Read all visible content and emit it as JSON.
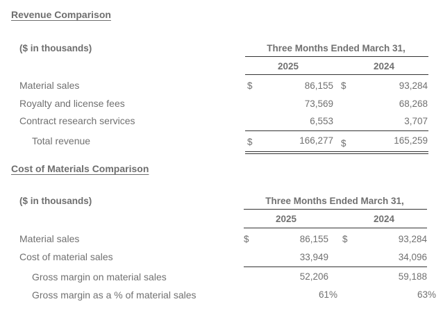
{
  "revenue": {
    "title": "Revenue Comparison",
    "units": "($ in thousands)",
    "period": "Three Months Ended March 31,",
    "years": [
      "2025",
      "2024"
    ],
    "rows": [
      {
        "label": "Material sales",
        "cur1": "$",
        "v1": "86,155",
        "cur2": "$",
        "v2": "93,284"
      },
      {
        "label": "Royalty and license fees",
        "cur1": "",
        "v1": "73,569",
        "cur2": "",
        "v2": "68,268"
      },
      {
        "label": "Contract research services",
        "cur1": "",
        "v1": "6,553",
        "cur2": "",
        "v2": "3,707"
      }
    ],
    "total": {
      "label": "Total revenue",
      "cur1": "$",
      "v1": "166,277",
      "cur2": "$",
      "v2": "165,259"
    }
  },
  "cost": {
    "title": "Cost of Materials Comparison",
    "units": "($ in thousands)",
    "period": "Three Months Ended March 31,",
    "years": [
      "2025",
      "2024"
    ],
    "rows": [
      {
        "label": "Material sales",
        "cur1": "$",
        "v1": "86,155",
        "cur2": "$",
        "v2": "93,284"
      },
      {
        "label": "Cost of material sales",
        "cur1": "",
        "v1": "33,949",
        "cur2": "",
        "v2": "34,096"
      }
    ],
    "margin": {
      "label": "Gross margin on material sales",
      "v1": "52,206",
      "v2": "59,188"
    },
    "margin_pct": {
      "label": "Gross margin as a % of material sales",
      "v1": "61%",
      "v2": "63%"
    }
  }
}
